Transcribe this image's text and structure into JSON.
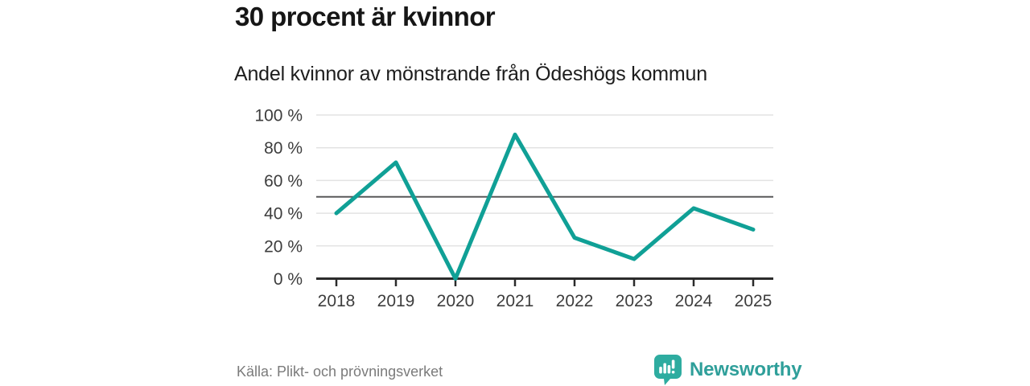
{
  "header": {
    "title": "30 procent är kvinnor",
    "subtitle": "Andel kvinnor av mönstrande från Ödeshögs kommun"
  },
  "chart_data": {
    "type": "line",
    "x": [
      "2018",
      "2019",
      "2020",
      "2021",
      "2022",
      "2023",
      "2024",
      "2025"
    ],
    "values": [
      40,
      71,
      0,
      88,
      25,
      12,
      43,
      30
    ],
    "ylim": [
      0,
      100
    ],
    "yticks": [
      0,
      20,
      40,
      60,
      80,
      100
    ],
    "ytick_suffix": " %",
    "reference_line": 50,
    "grid": true,
    "legend": "none",
    "line_color": "#10a096",
    "grid_color": "#e3e3e3",
    "reference_line_color": "#58585a",
    "axis_color": "#2b2b2b",
    "tick_label_color": "#3d3d3d"
  },
  "footer": {
    "source": "Källa: Plikt- och prövningsverket",
    "brand": "Newsworthy",
    "brand_color": "#2f9f9a",
    "brand_icon": "newsworthy-speech-bubble-bar-chart",
    "brand_icon_color": "#2eaca0"
  }
}
